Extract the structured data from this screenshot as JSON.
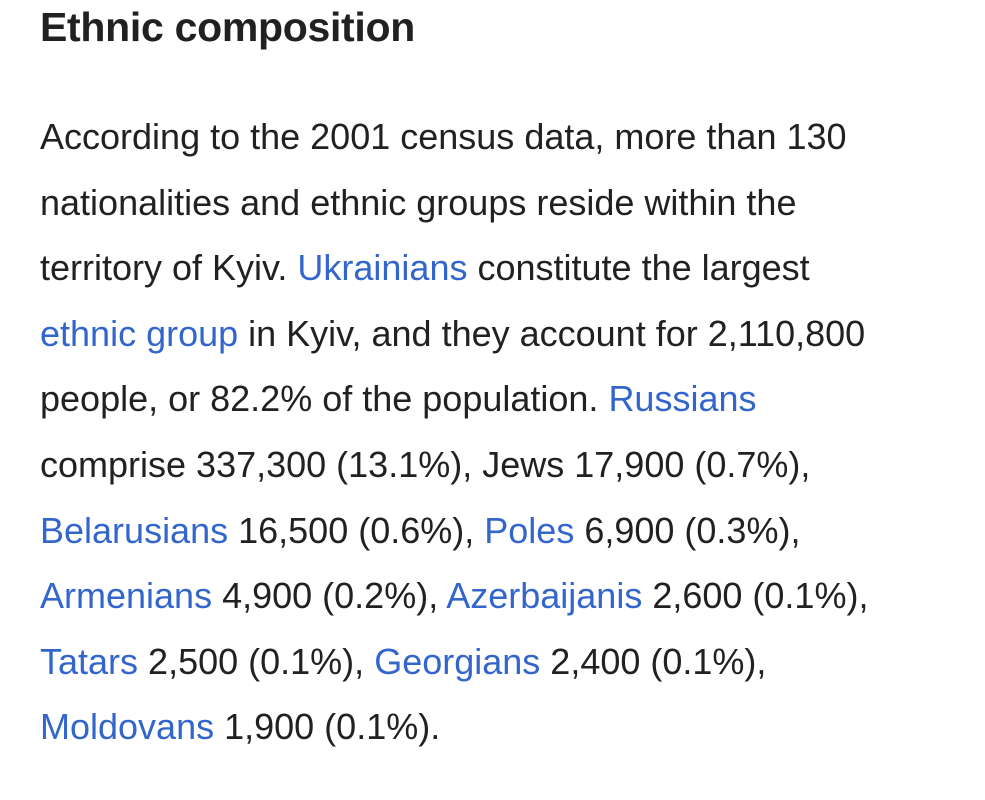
{
  "header": {
    "title": "Ethnic composition"
  },
  "paragraph": {
    "lines": [
      [
        {
          "text": "According to the 2001 census data, more than 130"
        }
      ],
      [
        {
          "text": "nationalities and ethnic groups reside within the"
        }
      ],
      [
        {
          "text": "territory of Kyiv. "
        },
        {
          "text": "Ukrainians",
          "link": true
        },
        {
          "text": " constitute the largest"
        }
      ],
      [
        {
          "text": "ethnic group",
          "link": true
        },
        {
          "text": " in Kyiv, and they account for 2,110,800"
        }
      ],
      [
        {
          "text": "people, or 82.2% of the population. "
        },
        {
          "text": "Russians",
          "link": true
        }
      ],
      [
        {
          "text": "comprise 337,300 (13.1%), Jews 17,900 (0.7%),"
        }
      ],
      [
        {
          "text": "Belarusians",
          "link": true
        },
        {
          "text": " 16,500 (0.6%), "
        },
        {
          "text": "Poles",
          "link": true
        },
        {
          "text": " 6,900 (0.3%),"
        }
      ],
      [
        {
          "text": "Armenians",
          "link": true
        },
        {
          "text": " 4,900 (0.2%), "
        },
        {
          "text": "Azerbaijanis",
          "link": true
        },
        {
          "text": " 2,600 (0.1%),"
        }
      ],
      [
        {
          "text": "Tatars",
          "link": true
        },
        {
          "text": " 2,500 (0.1%), "
        },
        {
          "text": "Georgians",
          "link": true
        },
        {
          "text": " 2,400 (0.1%),"
        }
      ],
      [
        {
          "text": "Moldovans",
          "link": true
        },
        {
          "text": " 1,900 (0.1%)."
        }
      ]
    ]
  }
}
